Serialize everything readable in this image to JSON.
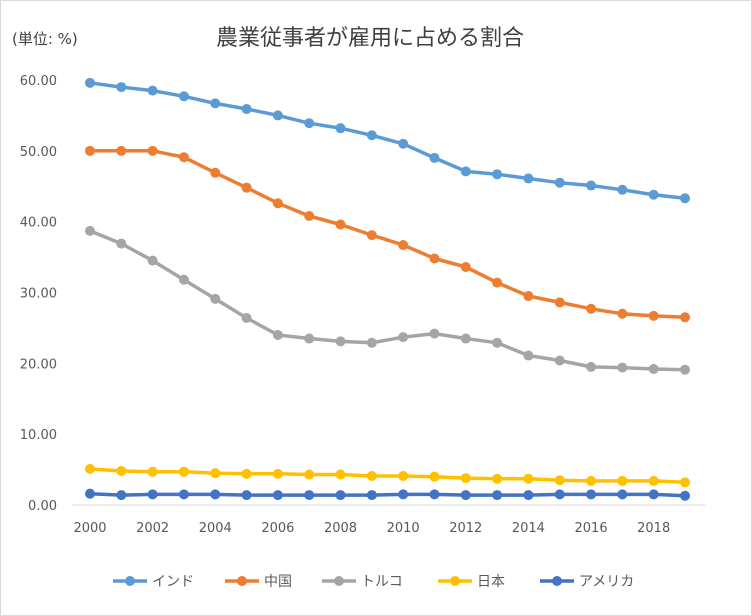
{
  "chart_data": {
    "type": "line",
    "title": "農業従事者が雇用に占める割合",
    "unit_label": "(単位: %)",
    "x": [
      2000,
      2001,
      2002,
      2003,
      2004,
      2005,
      2006,
      2007,
      2008,
      2009,
      2010,
      2011,
      2012,
      2013,
      2014,
      2015,
      2016,
      2017,
      2018,
      2019
    ],
    "x_tick_labels": [
      "2000",
      "2002",
      "2004",
      "2006",
      "2008",
      "2010",
      "2012",
      "2014",
      "2016",
      "2018"
    ],
    "y_tick_labels": [
      "0.00",
      "10.00",
      "20.00",
      "30.00",
      "40.00",
      "50.00",
      "60.00"
    ],
    "ylim": [
      0,
      60
    ],
    "grid": false,
    "legend_position": "bottom",
    "series": [
      {
        "name": "インド",
        "color": "#5b9bd5",
        "values": [
          59.6,
          59.0,
          58.5,
          57.7,
          56.7,
          55.9,
          55.0,
          53.9,
          53.2,
          52.2,
          51.0,
          49.0,
          47.1,
          46.7,
          46.1,
          45.5,
          45.1,
          44.5,
          43.8,
          43.3
        ]
      },
      {
        "name": "中国",
        "color": "#ed7d31",
        "values": [
          50.0,
          50.0,
          50.0,
          49.1,
          46.9,
          44.8,
          42.6,
          40.8,
          39.6,
          38.1,
          36.7,
          34.8,
          33.6,
          31.4,
          29.5,
          28.6,
          27.7,
          27.0,
          26.7,
          26.5
        ]
      },
      {
        "name": "トルコ",
        "color": "#a5a5a5",
        "values": [
          38.7,
          36.9,
          34.5,
          31.8,
          29.1,
          26.4,
          24.0,
          23.5,
          23.1,
          22.9,
          23.7,
          24.2,
          23.5,
          22.9,
          21.1,
          20.4,
          19.5,
          19.4,
          19.2,
          19.1
        ]
      },
      {
        "name": "日本",
        "color": "#ffc000",
        "values": [
          5.1,
          4.8,
          4.7,
          4.7,
          4.5,
          4.4,
          4.4,
          4.3,
          4.3,
          4.1,
          4.1,
          4.0,
          3.8,
          3.7,
          3.7,
          3.5,
          3.4,
          3.4,
          3.4,
          3.2
        ]
      },
      {
        "name": "アメリカ",
        "color": "#4472c4",
        "values": [
          1.6,
          1.4,
          1.5,
          1.5,
          1.5,
          1.4,
          1.4,
          1.4,
          1.4,
          1.4,
          1.5,
          1.5,
          1.4,
          1.4,
          1.4,
          1.5,
          1.5,
          1.5,
          1.5,
          1.3
        ]
      }
    ]
  }
}
